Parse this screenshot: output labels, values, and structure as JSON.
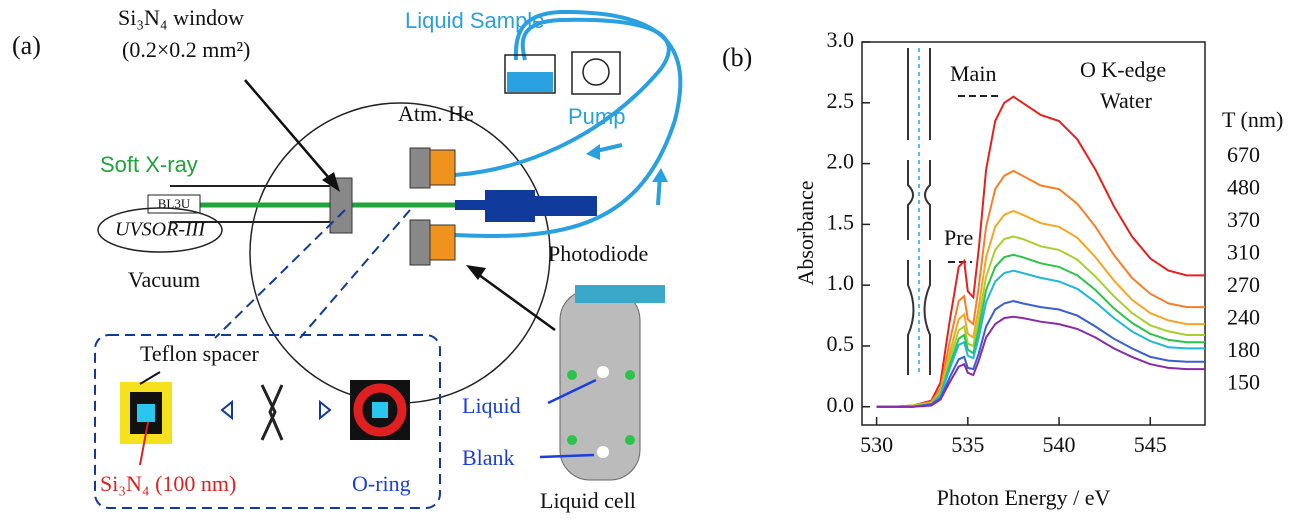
{
  "panel_a": {
    "label": "(a)",
    "window_label": "Si₃N₄ window",
    "window_size": "(0.2×0.2 mm²)",
    "liquid_sample": "Liquid Sample",
    "atm": "Atm. He",
    "pump": "Pump",
    "soft_xray": "Soft X-ray",
    "beamline": "BL3U",
    "source": "UVSOR-III",
    "vacuum": "Vacuum",
    "photodiode": "Photodiode",
    "teflon": "Teflon spacer",
    "membrane": "Si₃N₄ (100 nm)",
    "oring": "O-ring",
    "liquid": "Liquid",
    "blank": "Blank",
    "cell": "Liquid cell"
  },
  "chart_data": {
    "type": "line",
    "panel_label": "(b)",
    "x_label": "Photon Energy / eV",
    "y_label": "Absorbance",
    "annotations": [
      "Main",
      "Pre",
      "O K-edge",
      "Water"
    ],
    "legend_title": "T (nm)",
    "legend": "right",
    "xlim": [
      529.2,
      548
    ],
    "ylim": [
      -0.15,
      3.0
    ],
    "xticks": [
      530,
      535,
      540,
      545
    ],
    "yticks": [
      {
        "value": 0,
        "label": "0.0"
      },
      {
        "value": 0.5,
        "label": "0.5"
      },
      {
        "value": 1,
        "label": "1.0"
      },
      {
        "value": 1.5,
        "label": "1.5"
      },
      {
        "value": 2,
        "label": "2.0"
      },
      {
        "value": 2.5,
        "label": "2.5"
      },
      {
        "value": 3,
        "label": "3.0"
      }
    ],
    "x": [
      530,
      531,
      532,
      533,
      533.5,
      534,
      534.5,
      534.8,
      535,
      535.3,
      535.6,
      536,
      536.5,
      537,
      537.5,
      538,
      539,
      540,
      541,
      542,
      543,
      544,
      545,
      546,
      547,
      548
    ],
    "series": [
      {
        "name": "670",
        "color": "#e8201c",
        "values": [
          0,
          0,
          0.01,
          0.05,
          0.2,
          0.7,
          1.15,
          1.2,
          0.95,
          0.9,
          1.3,
          1.95,
          2.35,
          2.5,
          2.55,
          2.5,
          2.4,
          2.35,
          2.2,
          1.95,
          1.65,
          1.4,
          1.22,
          1.12,
          1.08,
          1.08
        ]
      },
      {
        "name": "480",
        "color": "#f57f2a",
        "values": [
          0,
          0,
          0.01,
          0.04,
          0.15,
          0.53,
          0.87,
          0.91,
          0.72,
          0.68,
          0.99,
          1.48,
          1.79,
          1.9,
          1.94,
          1.9,
          1.82,
          1.79,
          1.67,
          1.48,
          1.25,
          1.06,
          0.93,
          0.85,
          0.82,
          0.82
        ]
      },
      {
        "name": "370",
        "color": "#f5a623",
        "values": [
          0,
          0,
          0.01,
          0.03,
          0.13,
          0.44,
          0.72,
          0.76,
          0.6,
          0.57,
          0.82,
          1.23,
          1.48,
          1.58,
          1.61,
          1.58,
          1.51,
          1.48,
          1.39,
          1.23,
          1.04,
          0.88,
          0.77,
          0.71,
          0.68,
          0.68
        ]
      },
      {
        "name": "310",
        "color": "#a8d02a",
        "values": [
          0,
          0,
          0.01,
          0.03,
          0.11,
          0.39,
          0.63,
          0.66,
          0.52,
          0.5,
          0.72,
          1.07,
          1.29,
          1.38,
          1.4,
          1.38,
          1.32,
          1.29,
          1.21,
          1.07,
          0.91,
          0.77,
          0.67,
          0.62,
          0.59,
          0.59
        ]
      },
      {
        "name": "270",
        "color": "#2bc44a",
        "values": [
          0,
          0,
          0,
          0.02,
          0.1,
          0.34,
          0.56,
          0.59,
          0.47,
          0.44,
          0.64,
          0.96,
          1.15,
          1.23,
          1.25,
          1.23,
          1.18,
          1.15,
          1.08,
          0.96,
          0.81,
          0.69,
          0.6,
          0.55,
          0.53,
          0.53
        ]
      },
      {
        "name": "240",
        "color": "#20b8d8",
        "values": [
          0,
          0,
          0,
          0.02,
          0.09,
          0.31,
          0.51,
          0.53,
          0.42,
          0.4,
          0.57,
          0.86,
          1.03,
          1.1,
          1.12,
          1.1,
          1.06,
          1.03,
          0.97,
          0.86,
          0.73,
          0.62,
          0.54,
          0.49,
          0.48,
          0.48
        ]
      },
      {
        "name": "180",
        "color": "#3a5fd0",
        "values": [
          0,
          0,
          0,
          0.02,
          0.07,
          0.24,
          0.39,
          0.41,
          0.32,
          0.31,
          0.44,
          0.66,
          0.8,
          0.85,
          0.87,
          0.85,
          0.82,
          0.8,
          0.75,
          0.66,
          0.56,
          0.48,
          0.41,
          0.38,
          0.37,
          0.37
        ]
      },
      {
        "name": "150",
        "color": "#8a2aa8",
        "values": [
          0,
          0,
          0,
          0.01,
          0.06,
          0.2,
          0.33,
          0.35,
          0.28,
          0.26,
          0.38,
          0.57,
          0.68,
          0.73,
          0.74,
          0.73,
          0.7,
          0.68,
          0.64,
          0.57,
          0.48,
          0.41,
          0.35,
          0.32,
          0.31,
          0.31
        ]
      }
    ]
  }
}
